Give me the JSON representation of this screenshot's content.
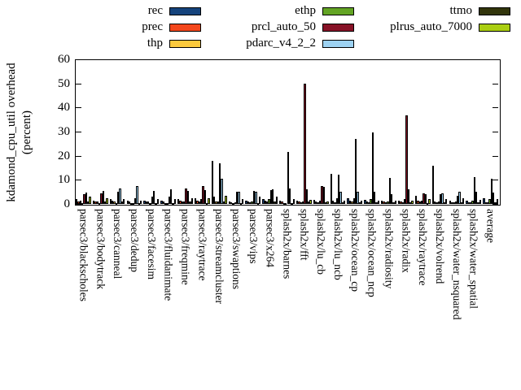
{
  "chart_data": {
    "type": "bar",
    "title": "",
    "ylabel_lines": [
      "kdamond_cpu_util overhead",
      "(percent)"
    ],
    "xlabel": "",
    "ylim": [
      0,
      60
    ],
    "yticks": [
      0,
      10,
      20,
      30,
      40,
      50,
      60
    ],
    "grid": false,
    "legend_position": "top",
    "legend_columns": [
      [
        {
          "name": "rec",
          "color": "#15437c"
        },
        {
          "name": "prec",
          "color": "#f4471c"
        },
        {
          "name": "thp",
          "color": "#fbc93d"
        }
      ],
      [
        {
          "name": "ethp",
          "color": "#63a424"
        },
        {
          "name": "prcl_auto_50",
          "color": "#871226"
        },
        {
          "name": "pdarc_v4_2_2",
          "color": "#9dd2f2"
        }
      ],
      [
        {
          "name": "ttmo",
          "color": "#32350c"
        },
        {
          "name": "plrus_auto_7000",
          "color": "#aace11"
        }
      ]
    ],
    "series_order": [
      "rec",
      "prec",
      "thp",
      "ethp",
      "prcl_auto_50",
      "pdarc_v4_2_2",
      "ttmo",
      "plrus_auto_7000"
    ],
    "series_colors": [
      "#15437c",
      "#f4471c",
      "#fbc93d",
      "#63a424",
      "#871226",
      "#9dd2f2",
      "#32350c",
      "#aace11"
    ],
    "categories": [
      "parsec3/blackscholes",
      "parsec3/bodytrack",
      "parsec3/canneal",
      "parsec3/dedup",
      "parsec3/facesim",
      "parsec3/fluidanimate",
      "parsec3/freqmine",
      "parsec3/raytrace",
      "parsec3/streamcluster",
      "parsec3/swaptions",
      "parsec3/vips",
      "parsec3/x264",
      "splash2x/barnes",
      "splash2x/fft",
      "splash2x/lu_cb",
      "splash2x/lu_ncb",
      "splash2x/ocean_cp",
      "splash2x/ocean_ncp",
      "splash2x/radiosity",
      "splash2x/radix",
      "splash2x/raytrace",
      "splash2x/volrend",
      "splash2x/water_nsquared",
      "splash2x/water_spatial",
      "average"
    ],
    "values": [
      [
        2.0,
        1.0,
        1.3,
        0.5,
        4.0,
        4.8,
        1.0,
        3.2
      ],
      [
        1.5,
        1.0,
        1.0,
        0.5,
        4.5,
        5.5,
        1.0,
        2.5
      ],
      [
        2.0,
        1.5,
        1.0,
        0.5,
        5.0,
        6.5,
        1.0,
        2.0
      ],
      [
        1.5,
        1.0,
        0.5,
        0.5,
        2.5,
        7.5,
        0.5,
        1.5
      ],
      [
        1.5,
        1.0,
        1.0,
        0.5,
        3.0,
        5.5,
        0.5,
        2.0
      ],
      [
        1.5,
        1.0,
        0.5,
        0.5,
        3.0,
        6.0,
        0.5,
        2.0
      ],
      [
        2.0,
        1.5,
        1.0,
        1.0,
        6.5,
        5.5,
        1.0,
        2.5
      ],
      [
        2.5,
        1.5,
        1.0,
        2.0,
        7.5,
        5.7,
        0.5,
        2.5
      ],
      [
        18.0,
        3.0,
        1.0,
        1.0,
        17.0,
        10.5,
        1.0,
        3.5
      ],
      [
        1.0,
        0.8,
        0.5,
        0.6,
        5.1,
        4.9,
        0.5,
        2.0
      ],
      [
        1.5,
        1.0,
        0.7,
        1.0,
        5.4,
        5.0,
        0.5,
        3.0
      ],
      [
        2.0,
        1.5,
        1.0,
        2.0,
        5.7,
        6.0,
        1.0,
        3.0
      ],
      [
        1.5,
        1.0,
        0.5,
        0.5,
        21.5,
        6.5,
        0.5,
        2.0
      ],
      [
        1.5,
        1.0,
        0.8,
        1.0,
        50.0,
        6.2,
        1.0,
        1.8
      ],
      [
        1.6,
        1.0,
        0.8,
        1.5,
        7.5,
        7.0,
        0.8,
        1.0
      ],
      [
        12.5,
        1.5,
        0.8,
        2.3,
        12.0,
        4.9,
        0.7,
        1.5
      ],
      [
        2.2,
        1.2,
        0.9,
        2.5,
        26.8,
        5.0,
        0.6,
        1.3
      ],
      [
        1.8,
        1.0,
        0.7,
        2.0,
        29.5,
        5.0,
        0.6,
        1.5
      ],
      [
        1.5,
        1.0,
        0.7,
        1.0,
        10.8,
        4.0,
        0.8,
        1.5
      ],
      [
        1.5,
        1.0,
        0.8,
        2.0,
        36.8,
        6.0,
        0.7,
        1.5
      ],
      [
        3.3,
        1.2,
        0.9,
        1.5,
        4.5,
        4.0,
        0.5,
        2.0
      ],
      [
        15.7,
        1.0,
        0.7,
        1.0,
        4.0,
        4.5,
        0.6,
        2.0
      ],
      [
        1.5,
        0.8,
        0.6,
        1.0,
        3.5,
        5.0,
        0.6,
        2.3
      ],
      [
        1.5,
        0.8,
        0.6,
        1.5,
        11.0,
        5.2,
        0.6,
        1.7
      ],
      [
        2.5,
        0.8,
        0.6,
        2.0,
        10.5,
        4.7,
        0.6,
        2.0
      ]
    ]
  },
  "layout_note_visible_text_only": true
}
